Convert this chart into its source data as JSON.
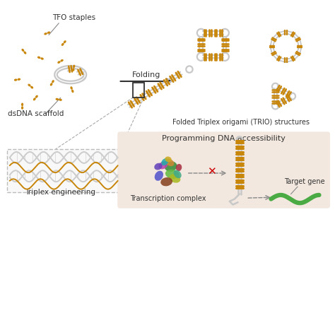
{
  "bg_color": "#ffffff",
  "tan_color": "#C8860A",
  "rope_color": "#c8c8c8",
  "rope_lw": 2.0,
  "green_color": "#4aaa44",
  "bottom_panel_color": "#f2e8df",
  "red_x_color": "#cc0000",
  "text_color": "#333333",
  "gray_text": "#555555",
  "label_tfo": "TFO staples",
  "label_dsdna": "dsDNA scaffold",
  "label_folding": "Folding",
  "label_trio": "Folded Triplex origami (TRIO) structures",
  "label_triplex": "Triplex engineering",
  "label_prog": "Programming DNA accessibility",
  "label_trans": "Transcription complex",
  "label_target": "Target gene",
  "figsize": [
    4.74,
    4.74
  ],
  "dpi": 100
}
